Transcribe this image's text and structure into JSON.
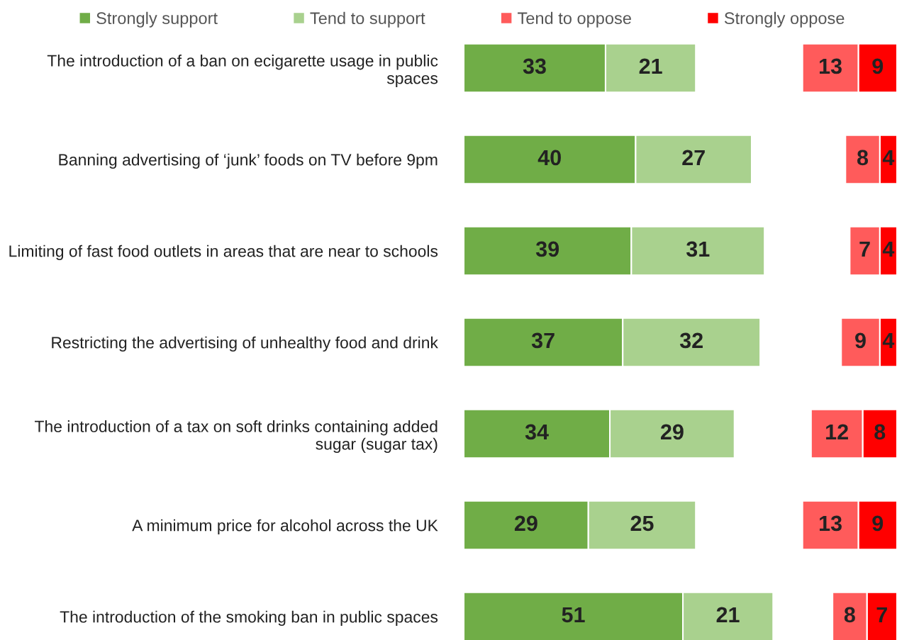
{
  "chart_data": [
    {
      "type": "bar",
      "orientation": "horizontal",
      "stacked": true,
      "categories": [
        "The introduction of a ban on ecigarette usage in public spaces",
        "Banning advertising of ‘junk’ foods on TV before 9pm",
        "Limiting of fast food outlets in areas that are near to schools",
        "Restricting the advertising of unhealthy food and drink",
        "The introduction of a tax on soft drinks containing added sugar (sugar tax)",
        "A minimum price for alcohol across the UK",
        "The introduction of the smoking ban in public spaces"
      ],
      "series": [
        {
          "name": "Strongly support",
          "color": "#70ad47",
          "values": [
            33,
            40,
            39,
            37,
            34,
            29,
            51
          ]
        },
        {
          "name": "Tend to support",
          "color": "#a9d18e",
          "values": [
            21,
            27,
            31,
            32,
            29,
            25,
            21
          ]
        }
      ],
      "data_labels": true,
      "legend": "top"
    },
    {
      "type": "bar",
      "orientation": "horizontal",
      "stacked": true,
      "categories": [
        null,
        null,
        null,
        null,
        null,
        null,
        null
      ],
      "series": [
        {
          "name": "Strongly oppose",
          "color": "#ff0000",
          "values": [
            9,
            4,
            4,
            4,
            8,
            9,
            7
          ]
        },
        {
          "name": "Tend to oppose",
          "color": "#ff5b5b",
          "values": [
            13,
            8,
            7,
            9,
            12,
            13,
            8
          ]
        }
      ],
      "data_labels": true,
      "legend": "top"
    }
  ]
}
